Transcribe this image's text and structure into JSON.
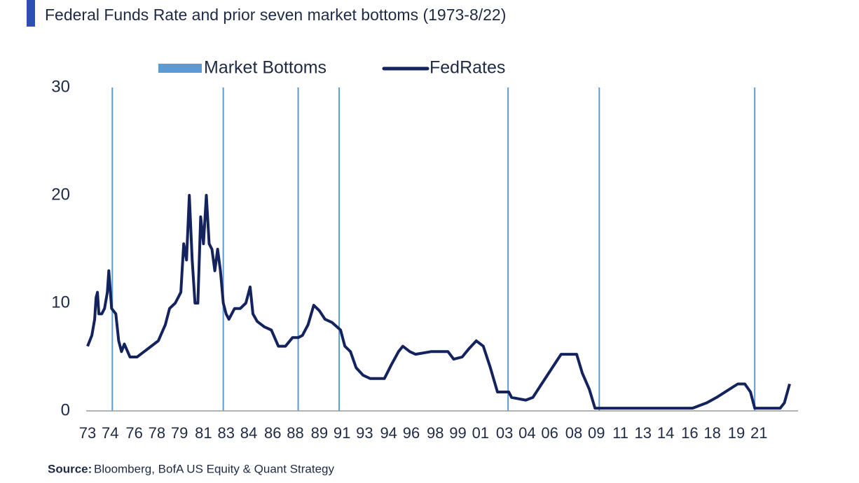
{
  "chart_data": {
    "type": "line",
    "subtitle": "Federal Funds Rate and prior seven market bottoms (1973-8/22)",
    "source_label": "Source:",
    "source": "Bloomberg, BofA US Equity & Quant Strategy",
    "xlim": [
      1973,
      2022.67
    ],
    "ylim": [
      0,
      30
    ],
    "yticks": [
      0,
      10,
      20,
      30
    ],
    "xticks": [
      {
        "value": 1973,
        "label": "73"
      },
      {
        "value": 1974.6,
        "label": "74"
      },
      {
        "value": 1976.3,
        "label": "76"
      },
      {
        "value": 1977.9,
        "label": "78"
      },
      {
        "value": 1979.5,
        "label": "79"
      },
      {
        "value": 1981.2,
        "label": "81"
      },
      {
        "value": 1982.8,
        "label": "83"
      },
      {
        "value": 1984.4,
        "label": "84"
      },
      {
        "value": 1986.1,
        "label": "86"
      },
      {
        "value": 1987.7,
        "label": "88"
      },
      {
        "value": 1989.4,
        "label": "89"
      },
      {
        "value": 1991.0,
        "label": "91"
      },
      {
        "value": 1992.6,
        "label": "93"
      },
      {
        "value": 1994.3,
        "label": "94"
      },
      {
        "value": 1995.9,
        "label": "96"
      },
      {
        "value": 1997.6,
        "label": "98"
      },
      {
        "value": 1999.2,
        "label": "99"
      },
      {
        "value": 2000.8,
        "label": "01"
      },
      {
        "value": 2002.5,
        "label": "03"
      },
      {
        "value": 2004.1,
        "label": "04"
      },
      {
        "value": 2005.7,
        "label": "06"
      },
      {
        "value": 2007.4,
        "label": "08"
      },
      {
        "value": 2009.0,
        "label": "09"
      },
      {
        "value": 2010.7,
        "label": "11"
      },
      {
        "value": 2012.3,
        "label": "13"
      },
      {
        "value": 2013.9,
        "label": "14"
      },
      {
        "value": 2015.6,
        "label": "16"
      },
      {
        "value": 2017.2,
        "label": "18"
      },
      {
        "value": 2018.9,
        "label": "19"
      },
      {
        "value": 2020.5,
        "label": "21"
      }
    ],
    "markers": {
      "name": "Market Bottoms",
      "color": "#5b9bd5",
      "x": [
        1974.75,
        1982.6,
        1987.9,
        1990.8,
        2002.75,
        2009.2,
        2020.2
      ]
    },
    "series": [
      {
        "name": "FedRates",
        "color": "#14235e",
        "x": [
          1973.0,
          1973.3,
          1973.5,
          1973.6,
          1973.7,
          1973.8,
          1974.0,
          1974.2,
          1974.4,
          1974.5,
          1974.7,
          1975.0,
          1975.2,
          1975.4,
          1975.6,
          1976.0,
          1976.5,
          1977.0,
          1977.5,
          1978.0,
          1978.5,
          1978.8,
          1979.2,
          1979.6,
          1979.8,
          1980.0,
          1980.2,
          1980.4,
          1980.6,
          1980.8,
          1981.0,
          1981.2,
          1981.4,
          1981.6,
          1981.8,
          1982.0,
          1982.2,
          1982.4,
          1982.6,
          1982.8,
          1983.0,
          1983.4,
          1983.8,
          1984.2,
          1984.5,
          1984.7,
          1985.0,
          1985.5,
          1986.0,
          1986.5,
          1987.0,
          1987.5,
          1987.9,
          1988.2,
          1988.6,
          1989.0,
          1989.4,
          1989.8,
          1990.3,
          1990.9,
          1991.2,
          1991.6,
          1992.0,
          1992.5,
          1993.0,
          1994.0,
          1994.5,
          1995.0,
          1995.3,
          1995.8,
          1996.2,
          1997.3,
          1998.5,
          1998.9,
          1999.5,
          2000.0,
          2000.5,
          2001.0,
          2001.5,
          2002.0,
          2002.8,
          2003.0,
          2004.0,
          2004.5,
          2005.0,
          2006.0,
          2006.5,
          2007.6,
          2008.0,
          2008.5,
          2008.9,
          2015.8,
          2016.8,
          2017.5,
          2018.4,
          2019.0,
          2019.5,
          2019.9,
          2020.2,
          2022.0,
          2022.3,
          2022.67
        ],
        "values": [
          6,
          7,
          8.5,
          10.5,
          11,
          9,
          9,
          9.5,
          11,
          13,
          9.5,
          9,
          6.5,
          5.5,
          6.2,
          5,
          5,
          5.5,
          6,
          6.5,
          8,
          9.5,
          10,
          11,
          15.5,
          14,
          20,
          14,
          10,
          10,
          18,
          15.5,
          20,
          15.5,
          15,
          13,
          15,
          13,
          10,
          9,
          8.5,
          9.5,
          9.5,
          10,
          11.5,
          9,
          8.3,
          7.8,
          7.5,
          6,
          6,
          6.8,
          6.8,
          7,
          8,
          9.8,
          9.3,
          8.5,
          8.2,
          7.5,
          6,
          5.5,
          4,
          3.3,
          3,
          3,
          4.3,
          5.5,
          6,
          5.5,
          5.25,
          5.5,
          5.5,
          4.8,
          5,
          5.8,
          6.5,
          6,
          4,
          1.75,
          1.75,
          1.25,
          1,
          1.25,
          2.25,
          4.25,
          5.25,
          5.25,
          3.5,
          2,
          0.25,
          0.25,
          0.75,
          1.25,
          2,
          2.5,
          2.5,
          1.75,
          0.25,
          0.25,
          0.75,
          2.5
        ]
      }
    ]
  }
}
